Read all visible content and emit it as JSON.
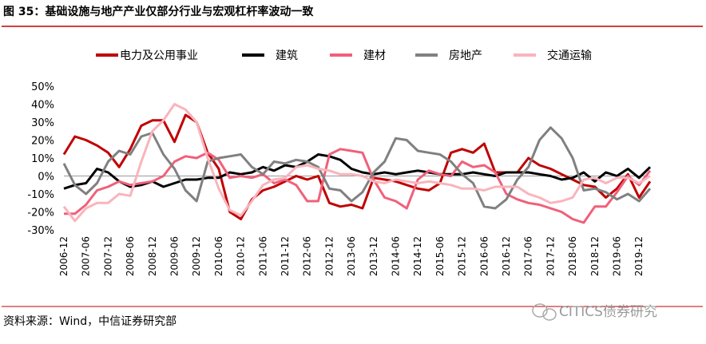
{
  "chart_data": {
    "type": "line",
    "title": "图 35：基础设施与地产产业仅部分行业与宏观杠杆率波动一致",
    "source": "资料来源：Wind，中信证券研究部",
    "watermark": "CITICS债券研究",
    "categories": [
      "2006-12",
      null,
      "2007-06",
      null,
      "2007-12",
      null,
      "2008-06",
      null,
      "2008-12",
      null,
      "2009-06",
      null,
      "2009-12",
      null,
      "2010-06",
      null,
      "2010-12",
      null,
      "2011-06",
      null,
      "2011-12",
      null,
      "2012-06",
      null,
      "2012-12",
      null,
      "2013-06",
      null,
      "2013-12",
      null,
      "2014-06",
      null,
      "2014-12",
      null,
      "2015-06",
      null,
      "2015-12",
      null,
      "2016-06",
      null,
      "2016-12",
      null,
      "2017-06",
      null,
      "2017-12",
      null,
      "2018-06",
      null,
      "2018-12",
      null,
      "2019-06",
      null,
      "2019-12",
      null
    ],
    "series": [
      {
        "name": "电力及公用事业",
        "color": "#c00000",
        "values": [
          12,
          22,
          20,
          17,
          13,
          5,
          15,
          28,
          31,
          31,
          19,
          34,
          30,
          13,
          4,
          -20,
          -24,
          -13,
          -8,
          -6,
          -3,
          0,
          -2,
          0,
          -15,
          -17,
          -16,
          -18,
          -1,
          -2,
          -3,
          -5,
          -7,
          -8,
          -4,
          13,
          15,
          13,
          18,
          2,
          2,
          2,
          10,
          6,
          4,
          1,
          -2,
          -5,
          -6,
          -12,
          -7,
          1,
          -12,
          -3
        ]
      },
      {
        "name": "建筑",
        "color": "#000000",
        "values": [
          -7,
          -5,
          -4,
          4,
          2,
          -3,
          -6,
          -5,
          -3,
          -6,
          -4,
          -2,
          -2,
          -1,
          -1,
          2,
          1,
          2,
          5,
          3,
          6,
          5,
          8,
          12,
          11,
          9,
          4,
          2,
          1,
          2,
          1,
          2,
          3,
          2,
          1,
          1,
          1,
          2,
          1,
          0,
          2,
          2,
          2,
          1,
          0,
          -2,
          -1,
          2,
          -3,
          2,
          0,
          4,
          -1,
          5
        ]
      },
      {
        "name": "建材",
        "color": "#f0607a",
        "values": [
          -21,
          -21,
          -16,
          -8,
          -6,
          -3,
          -5,
          -4,
          -3,
          0,
          8,
          11,
          10,
          13,
          9,
          -1,
          0,
          -1,
          1,
          -4,
          -2,
          -5,
          -14,
          -14,
          12,
          15,
          14,
          13,
          -2,
          -12,
          -14,
          -18,
          -2,
          3,
          1,
          0,
          8,
          5,
          6,
          2,
          -10,
          -13,
          -15,
          -16,
          -18,
          -20,
          -24,
          -26,
          -17,
          -17,
          -9,
          0,
          -5,
          3
        ]
      },
      {
        "name": "房地产",
        "color": "#808080",
        "values": [
          7,
          -5,
          -10,
          -4,
          8,
          14,
          12,
          22,
          24,
          12,
          4,
          -8,
          -14,
          8,
          10,
          11,
          12,
          5,
          1,
          8,
          7,
          9,
          8,
          5,
          -7,
          -8,
          -14,
          -9,
          2,
          8,
          21,
          20,
          14,
          13,
          12,
          8,
          1,
          -4,
          -17,
          -18,
          -13,
          -2,
          5,
          20,
          27,
          21,
          10,
          -8,
          -7,
          -9,
          -13,
          -10,
          -14,
          -7
        ]
      },
      {
        "name": "交通运输",
        "color": "#f9b4bc",
        "values": [
          -17,
          -25,
          -18,
          -15,
          -15,
          -10,
          -11,
          8,
          25,
          31,
          40,
          37,
          30,
          10,
          -7,
          -19,
          -22,
          -14,
          -5,
          -2,
          -1,
          5,
          6,
          4,
          3,
          1,
          1,
          0,
          -3,
          -4,
          -2,
          -3,
          -4,
          -3,
          -4,
          -5,
          -7,
          -7,
          -8,
          -6,
          -6,
          -6,
          -10,
          -12,
          -15,
          -14,
          -12,
          -2,
          -1,
          -4,
          -1,
          -1,
          -4,
          0
        ]
      }
    ],
    "ylim": [
      -30,
      50
    ],
    "yticks": [
      {
        "value": -30,
        "label": "-30%"
      },
      {
        "value": -20,
        "label": "-20%"
      },
      {
        "value": -10,
        "label": "-10%"
      },
      {
        "value": 0,
        "label": "0%"
      },
      {
        "value": 10,
        "label": "10%"
      },
      {
        "value": 20,
        "label": "20%"
      },
      {
        "value": 30,
        "label": "30%"
      },
      {
        "value": 40,
        "label": "40%"
      },
      {
        "value": 50,
        "label": "50%"
      }
    ],
    "grid": false,
    "legend": "top"
  }
}
